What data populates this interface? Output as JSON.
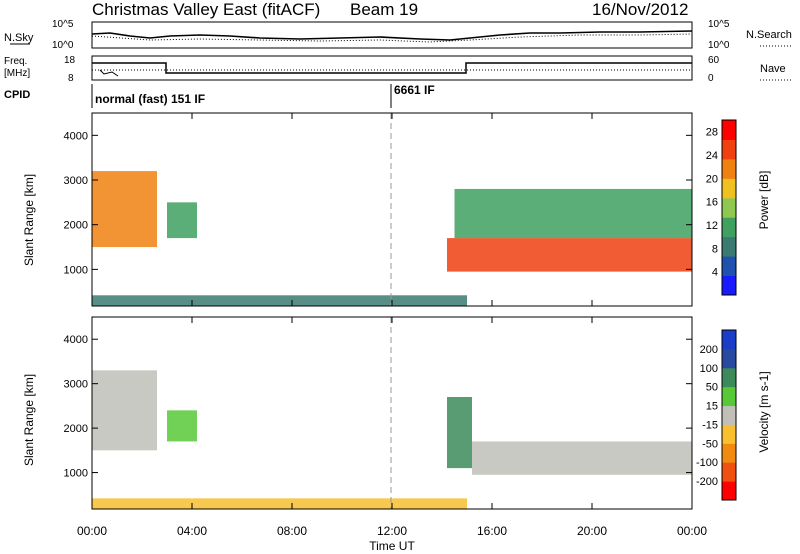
{
  "header": {
    "title": "Christmas Valley East (fitACF)",
    "beam": "Beam 19",
    "date": "16/Nov/2012"
  },
  "panels": {
    "nsky_label": "N.Sky",
    "nsky_ticks": [
      "10^5",
      "10^0"
    ],
    "nsearch_label": "N.Search",
    "freq_label_1": "Freq.",
    "freq_label_2": "[MHz]",
    "freq_ticks": [
      "18",
      "8"
    ],
    "nave_ticks": [
      "60",
      "0"
    ],
    "nave_label": "Nave",
    "cpid_label": "CPID",
    "cpid_1": "normal (fast) 151 IF",
    "cpid_2": "6661 IF"
  },
  "colors": {
    "power": [
      "#1a1aff",
      "#2050b0",
      "#3a7a70",
      "#40a060",
      "#8ec850",
      "#f0c020",
      "#f08010",
      "#f04010",
      "#ff0000"
    ],
    "velocity_cbar": [
      "#ff0000",
      "#f05010",
      "#f08a10",
      "#f8c030",
      "#c0c0b8",
      "#58c838",
      "#3c8a5a",
      "#284a9e",
      "#1a3cc8"
    ]
  },
  "chart_data": [
    {
      "type": "heatmap",
      "name": "power-panel",
      "xlabel": "",
      "ylabel": "Slant Range [km]",
      "x_ticks": [
        "00:00",
        "04:00",
        "08:00",
        "12:00",
        "16:00",
        "20:00",
        "00:00"
      ],
      "xlim_hours": [
        0,
        24
      ],
      "y_ticks": [
        1000,
        2000,
        3000,
        4000
      ],
      "ylim_km": [
        180,
        4500
      ],
      "colorbar_label": "Power [dB]",
      "colorbar_ticks": [
        4,
        8,
        12,
        16,
        20,
        24,
        28
      ],
      "colorbar_range": [
        0,
        30
      ],
      "regions": [
        {
          "t0": 0.0,
          "t1": 2.6,
          "r0": 1500,
          "r1": 3200,
          "level": "high",
          "desc_value": 20
        },
        {
          "t0": 3.0,
          "t1": 4.2,
          "r0": 1700,
          "r1": 2500,
          "level": "mid",
          "desc_value": 10
        },
        {
          "t0": 14.2,
          "t1": 24.0,
          "r0": 950,
          "r1": 1700,
          "level": "high",
          "desc_value": 26
        },
        {
          "t0": 14.5,
          "t1": 24.0,
          "r0": 1700,
          "r1": 2800,
          "level": "mid",
          "desc_value": 12
        },
        {
          "t0": 0.0,
          "t1": 15.0,
          "r0": 180,
          "r1": 420,
          "level": "low",
          "desc_value": 8
        }
      ]
    },
    {
      "type": "heatmap",
      "name": "velocity-panel",
      "xlabel": "Time UT",
      "ylabel": "Slant Range [km]",
      "x_ticks": [
        "00:00",
        "04:00",
        "08:00",
        "12:00",
        "16:00",
        "20:00",
        "00:00"
      ],
      "xlim_hours": [
        0,
        24
      ],
      "y_ticks": [
        1000,
        2000,
        3000,
        4000
      ],
      "ylim_km": [
        180,
        4500
      ],
      "colorbar_label": "Velocity [m s-1]",
      "colorbar_ticks": [
        "200",
        "100",
        "50",
        "15",
        "-15",
        "-50",
        "-100",
        "-200"
      ],
      "regions": [
        {
          "t0": 0.0,
          "t1": 2.6,
          "r0": 1500,
          "r1": 3300,
          "value": 0
        },
        {
          "t0": 3.0,
          "t1": 4.2,
          "r0": 1700,
          "r1": 2400,
          "value": 20
        },
        {
          "t0": 14.2,
          "t1": 15.2,
          "r0": 1100,
          "r1": 2700,
          "value": 60
        },
        {
          "t0": 15.2,
          "t1": 24.0,
          "r0": 950,
          "r1": 1700,
          "value": 0
        },
        {
          "t0": 0.0,
          "t1": 15.0,
          "r0": 180,
          "r1": 420,
          "value": -40
        }
      ]
    }
  ]
}
